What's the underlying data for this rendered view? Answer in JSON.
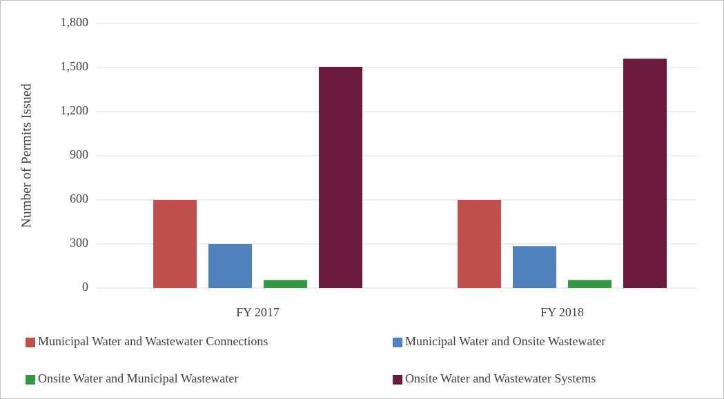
{
  "chart_data": {
    "type": "bar",
    "y_label": "Number of Permits Issued",
    "categories": [
      "FY 2017",
      "FY 2018"
    ],
    "series": [
      {
        "name": "Municipal Water and Wastewater Connections",
        "color": "#c0504d",
        "values": [
          600,
          600
        ]
      },
      {
        "name": "Municipal Water and Onsite Wastewater",
        "color": "#4f81bd",
        "values": [
          300,
          285
        ]
      },
      {
        "name": "Onsite Water and Municipal Wastewater",
        "color": "#339944",
        "values": [
          55,
          55
        ]
      },
      {
        "name": "Onsite Water and Wastewater Systems",
        "color": "#6b1a3d",
        "values": [
          1505,
          1560
        ]
      }
    ],
    "ylim": [
      0,
      1800
    ],
    "yticks": [
      0,
      300,
      600,
      900,
      {
        "value": 1200,
        "label": "1,200"
      },
      {
        "value": 1500,
        "label": "1,500"
      },
      {
        "value": 1800,
        "label": "1,800"
      }
    ],
    "grid": true
  }
}
